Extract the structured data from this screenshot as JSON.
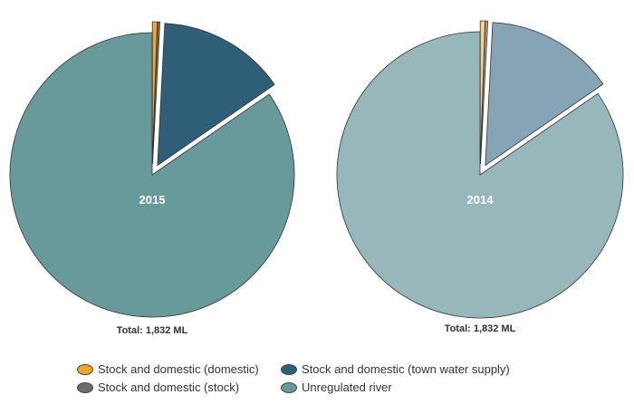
{
  "chart_data": [
    {
      "type": "pie",
      "title": "2015",
      "caption": "Total: 1,832 ML",
      "series": [
        {
          "name": "Stock and domestic (domestic)",
          "value": 10
        },
        {
          "name": "Stock and domestic (stock)",
          "value": 5
        },
        {
          "name": "Stock and domestic (town water supply)",
          "value": 267
        },
        {
          "name": "Unregulated river",
          "value": 1550
        }
      ],
      "colors": [
        "#f5a623",
        "#6b6b6b",
        "#2f5f78",
        "#68999b"
      ],
      "exploded": [
        "Stock and domestic (domestic)",
        "Stock and domestic (stock)",
        "Stock and domestic (town water supply)"
      ]
    },
    {
      "type": "pie",
      "title": "2014",
      "caption": "Total: 1,832 ML",
      "series": [
        {
          "name": "Stock and domestic (domestic)",
          "value": 10
        },
        {
          "name": "Stock and domestic (stock)",
          "value": 5
        },
        {
          "name": "Stock and domestic (town water supply)",
          "value": 267
        },
        {
          "name": "Unregulated river",
          "value": 1550
        }
      ],
      "colors": [
        "#f8d08e",
        "#a6a6a6",
        "#87a4b4",
        "#97b7ba"
      ],
      "exploded": [
        "Stock and domestic (domestic)",
        "Stock and domestic (stock)",
        "Stock and domestic (town water supply)"
      ]
    }
  ],
  "legend": {
    "items": [
      {
        "label": "Stock and domestic (domestic)",
        "color": "#f5a623"
      },
      {
        "label": "Stock and domestic (stock)",
        "color": "#6b6b6b"
      },
      {
        "label": "Stock and domestic (town water supply)",
        "color": "#2f5f78"
      },
      {
        "label": "Unregulated river",
        "color": "#68999b"
      }
    ]
  }
}
